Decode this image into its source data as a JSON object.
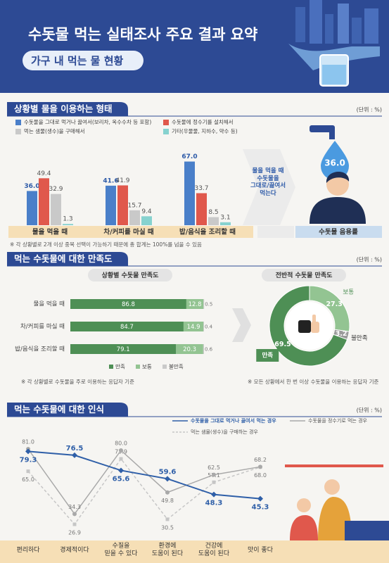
{
  "header": {
    "title": "수돗물 먹는 실태조사 주요 결과 요약",
    "subtitle": "가구 내 먹는 물 현황"
  },
  "sections": [
    {
      "title": "상황별 물을 이용하는 형태",
      "unit": "(단위 : %)",
      "note": "※ 각 상황별로 2개 이상 중복 선택이 가능하기 때문에 총 합계는 100%를 넘을 수 있음"
    },
    {
      "title": "먹는 수돗물에 대한 만족도",
      "unit": "(단위 : %)"
    },
    {
      "title": "먹는 수돗물에 대한 인식",
      "unit": "(단위 : %)"
    }
  ],
  "chart_data": [
    {
      "type": "bar",
      "categories": [
        "물을 먹을 때",
        "차/커피를 마실 때",
        "밥/음식을 조리할 때"
      ],
      "series": [
        {
          "name": "수돗물을 그대로 먹거나 끓여서(보리차, 옥수수차 등 포함)",
          "color": "#4a7fc9",
          "values": [
            36.0,
            41.6,
            67.0
          ],
          "value_labels": [
            "36.0",
            "41.6",
            "67.0"
          ]
        },
        {
          "name": "수돗물에 정수기를 설치해서",
          "color": "#e0584c",
          "values": [
            49.4,
            41.9,
            33.7
          ],
          "value_labels": [
            "49.4",
            "41.9",
            "33.7"
          ]
        },
        {
          "name": "먹는 샘물(생수)을 구매해서",
          "color": "#c9c9c9",
          "values": [
            32.9,
            15.7,
            8.5
          ],
          "value_labels": [
            "32.9",
            "15.7",
            "8.5"
          ]
        },
        {
          "name": "기타(우물물, 지하수, 약수 등)",
          "color": "#86d2cf",
          "values": [
            1.3,
            9.4,
            3.1
          ],
          "value_labels": [
            "1.3",
            "9.4",
            "3.1"
          ]
        }
      ],
      "callout": {
        "text": "물을 먹을 때\n수돗물을\n그대로/끓여서\n먹는다",
        "rate": {
          "value": 36.0,
          "label": "36.0"
        },
        "label": "수돗물 음용률"
      }
    },
    {
      "type": "hbar",
      "title": "상황별 수돗물 만족도",
      "categories": [
        "물을 먹을 때",
        "차/커피를 마실 때",
        "밥/음식을 조리할 때"
      ],
      "series": [
        {
          "name": "만족",
          "color": "#4e8f55",
          "values": [
            86.8,
            84.7,
            79.1
          ]
        },
        {
          "name": "보통",
          "color": "#93c492",
          "values": [
            12.8,
            14.9,
            20.3
          ]
        },
        {
          "name": "불만족",
          "color": "#c9c9c9",
          "values": [
            0.5,
            0.4,
            0.6
          ]
        }
      ],
      "note": "※ 각 상황별로 수돗물을 주로 이용하는 응답자 기준"
    },
    {
      "type": "pie",
      "title": "전반적 수돗물 만족도",
      "categories": [
        "만족",
        "보통",
        "불만족"
      ],
      "values": [
        69.5,
        27.3,
        3.2
      ],
      "colors": [
        "#4e8f55",
        "#93c492",
        "#9a9a9a"
      ],
      "note": "※ 모든 상황에서 한 번 이상 수돗물을 이용하는 응답자 기준"
    },
    {
      "type": "line",
      "categories": [
        "편리하다",
        "경제적이다",
        "수질을\n믿을 수 있다",
        "환경에\n도움이 된다",
        "건강에\n도움이 된다",
        "맛이 좋다"
      ],
      "series": [
        {
          "name": "수돗물을 그대로 먹거나 끓여서 먹는 경우",
          "color": "#2f5fa8",
          "marker": "diamond",
          "values": [
            79.3,
            76.5,
            65.6,
            59.6,
            48.3,
            45.3
          ],
          "value_labels": [
            "79.3",
            "76.5",
            "65.6",
            "59.6",
            "48.3",
            "45.3"
          ]
        },
        {
          "name": "수돗물을 정수기로 먹는 경우",
          "color": "#a9a9a9",
          "marker": "circle",
          "values": [
            81.0,
            34.3,
            80.0,
            49.8,
            62.5,
            68.2
          ],
          "value_labels": [
            "81.0",
            "34.3",
            "80.0",
            "49.8",
            "62.5",
            "68.2"
          ]
        },
        {
          "name": "먹는 샘물(생수)을 구매하는 경우",
          "color": "#c6c6c6",
          "marker": "square",
          "dashed": true,
          "values": [
            65.0,
            26.9,
            73.9,
            30.5,
            57.1,
            68.0
          ],
          "value_labels": [
            "65.0",
            "26.9",
            "73.9",
            "30.5",
            "57.1",
            "68.0"
          ]
        }
      ]
    }
  ]
}
